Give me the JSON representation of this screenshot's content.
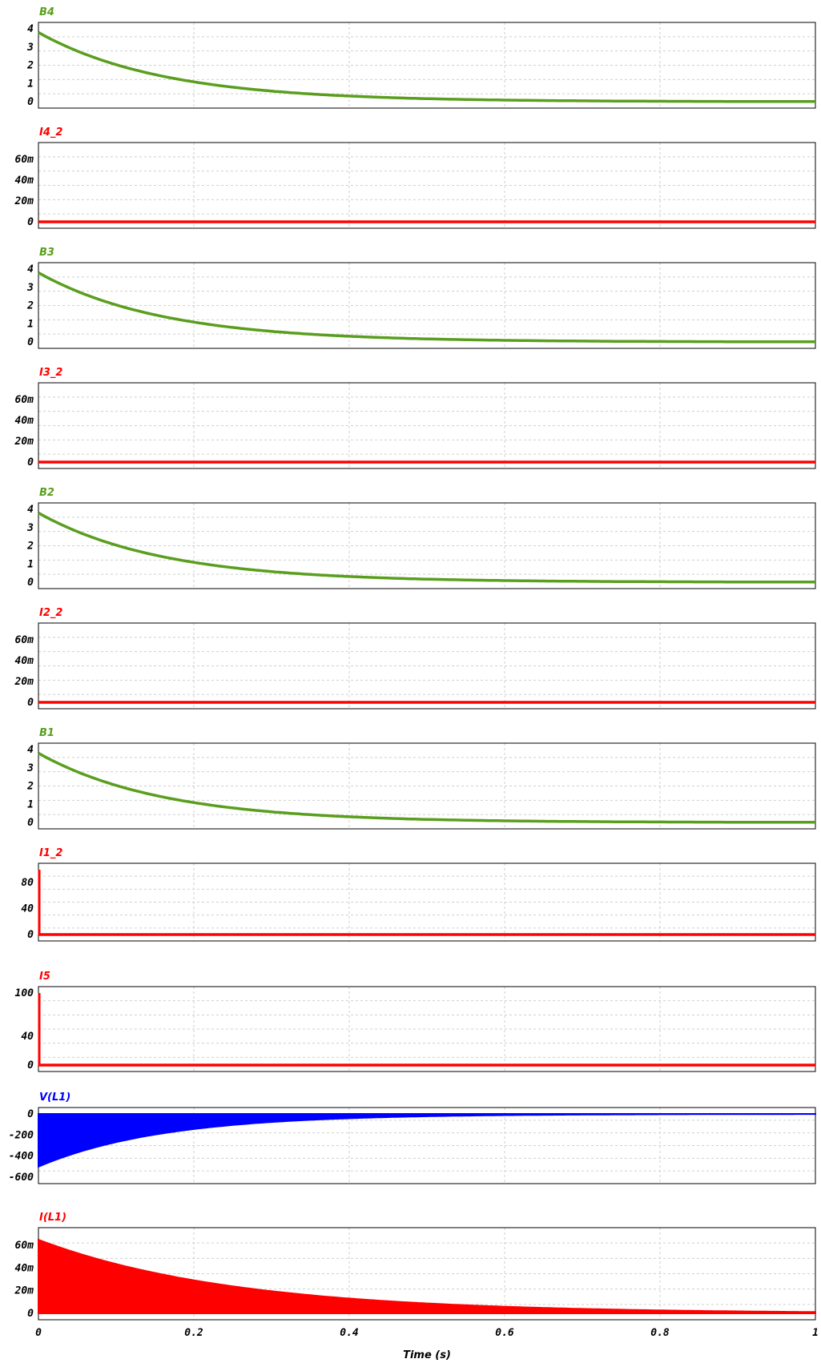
{
  "chart_data": {
    "type": "line",
    "xlabel": "Time (s)",
    "xlim": [
      0,
      1
    ],
    "x_ticks": [
      0,
      0.2,
      0.4,
      0.6,
      0.8,
      1
    ],
    "x_tick_labels": [
      "0",
      "0.2",
      "0.4",
      "0.6",
      "0.8",
      "1"
    ],
    "grid": true,
    "panels": [
      {
        "name": "B4",
        "color": "#5a9e1e",
        "kind": "decay",
        "ylim": [
          0,
          4
        ],
        "y_ticks": [
          0,
          1,
          2,
          3,
          4
        ],
        "y_tick_labels": [
          "0",
          "1",
          "2",
          "3",
          "4"
        ],
        "initial": 3.8,
        "tau": 0.16,
        "x": [
          0,
          0.1,
          0.2,
          0.3,
          0.4,
          0.5,
          0.6,
          0.7,
          0.8,
          0.9,
          1.0
        ],
        "values": [
          3.8,
          2.0,
          1.1,
          0.6,
          0.32,
          0.17,
          0.09,
          0.05,
          0.03,
          0.02,
          0.0
        ]
      },
      {
        "name": "I4_2",
        "color": "#ff0000",
        "kind": "flat",
        "ylim": [
          0,
          0.07
        ],
        "y_ticks": [
          0,
          0.02,
          0.04,
          0.06
        ],
        "y_tick_labels": [
          "0",
          "20m",
          "40m",
          "60m"
        ],
        "value": 0
      },
      {
        "name": "B3",
        "color": "#5a9e1e",
        "kind": "decay",
        "ylim": [
          0,
          4
        ],
        "y_ticks": [
          0,
          1,
          2,
          3,
          4
        ],
        "y_tick_labels": [
          "0",
          "1",
          "2",
          "3",
          "4"
        ],
        "initial": 3.8,
        "tau": 0.16,
        "x": [
          0,
          0.1,
          0.2,
          0.3,
          0.4,
          0.5,
          0.6,
          0.7,
          0.8,
          0.9,
          1.0
        ],
        "values": [
          3.8,
          2.0,
          1.1,
          0.6,
          0.32,
          0.17,
          0.09,
          0.05,
          0.03,
          0.02,
          0.0
        ]
      },
      {
        "name": "I3_2",
        "color": "#ff0000",
        "kind": "flat",
        "ylim": [
          0,
          0.07
        ],
        "y_ticks": [
          0,
          0.02,
          0.04,
          0.06
        ],
        "y_tick_labels": [
          "0",
          "20m",
          "40m",
          "60m"
        ],
        "value": 0
      },
      {
        "name": "B2",
        "color": "#5a9e1e",
        "kind": "decay",
        "ylim": [
          0,
          4
        ],
        "y_ticks": [
          0,
          1,
          2,
          3,
          4
        ],
        "y_tick_labels": [
          "0",
          "1",
          "2",
          "3",
          "4"
        ],
        "initial": 3.8,
        "tau": 0.16,
        "x": [
          0,
          0.1,
          0.2,
          0.3,
          0.4,
          0.5,
          0.6,
          0.7,
          0.8,
          0.9,
          1.0
        ],
        "values": [
          3.8,
          2.0,
          1.1,
          0.6,
          0.32,
          0.17,
          0.09,
          0.05,
          0.03,
          0.02,
          0.0
        ]
      },
      {
        "name": "I2_2",
        "color": "#ff0000",
        "kind": "flat",
        "ylim": [
          0,
          0.07
        ],
        "y_ticks": [
          0,
          0.02,
          0.04,
          0.06
        ],
        "y_tick_labels": [
          "0",
          "20m",
          "40m",
          "60m"
        ],
        "value": 0
      },
      {
        "name": "B1",
        "color": "#5a9e1e",
        "kind": "decay",
        "ylim": [
          0,
          4
        ],
        "y_ticks": [
          0,
          1,
          2,
          3,
          4
        ],
        "y_tick_labels": [
          "0",
          "1",
          "2",
          "3",
          "4"
        ],
        "initial": 3.8,
        "tau": 0.16,
        "x": [
          0,
          0.1,
          0.2,
          0.3,
          0.4,
          0.5,
          0.6,
          0.7,
          0.8,
          0.9,
          1.0
        ],
        "values": [
          3.8,
          2.0,
          1.1,
          0.6,
          0.32,
          0.17,
          0.09,
          0.05,
          0.03,
          0.02,
          0.0
        ]
      },
      {
        "name": "I1_2",
        "color": "#ff0000",
        "kind": "spike",
        "ylim": [
          0,
          100
        ],
        "y_ticks": [
          0,
          40,
          80
        ],
        "y_tick_labels": [
          "0",
          "40",
          "80"
        ],
        "value": 0,
        "spike_peak": 100
      },
      {
        "name": "I5",
        "color": "#ff0000",
        "kind": "spike",
        "ylim": [
          0,
          100
        ],
        "y_ticks": [
          0,
          40,
          100
        ],
        "y_tick_labels": [
          "0",
          "40",
          "100"
        ],
        "value": 0,
        "spike_peak": 100
      },
      {
        "name": "V(L1)",
        "color": "#0000ff",
        "kind": "envelope",
        "ylim": [
          -600,
          0
        ],
        "y_ticks": [
          -600,
          -400,
          -200,
          0
        ],
        "y_tick_labels": [
          "-600",
          "-400",
          "-200",
          "0"
        ],
        "upper": 0,
        "lower_initial": -500,
        "tau": 0.16
      },
      {
        "name": "I(L1)",
        "color": "#ff0000",
        "kind": "envelope",
        "ylim": [
          0,
          0.07
        ],
        "y_ticks": [
          0,
          0.02,
          0.04,
          0.06
        ],
        "y_tick_labels": [
          "0",
          "20m",
          "40m",
          "60m"
        ],
        "upper_initial": 0.065,
        "lower": 0,
        "tau": 0.25
      }
    ]
  }
}
